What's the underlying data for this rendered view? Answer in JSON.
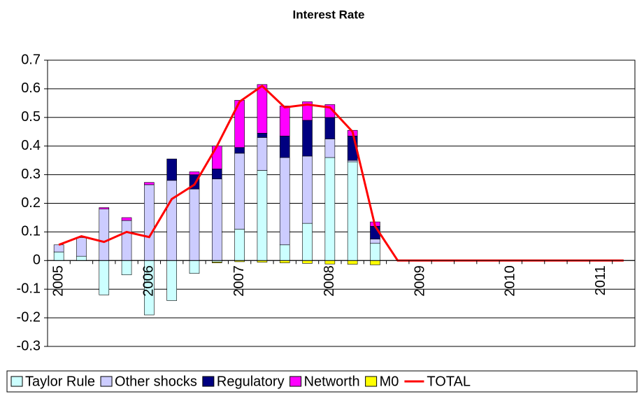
{
  "chart_data": {
    "type": "stacked-bar-line",
    "title": "Interest Rate",
    "categories": [
      "2005",
      null,
      null,
      null,
      "2006",
      null,
      null,
      null,
      "2007",
      null,
      null,
      null,
      "2008",
      null,
      null,
      null,
      "2009",
      null,
      null,
      null,
      "2010",
      null,
      null,
      null,
      "2011",
      null
    ],
    "series": [
      {
        "name": "Taylor Rule",
        "type": "bar",
        "color": "#ccffff",
        "values": [
          0.03,
          0.015,
          -0.12,
          -0.05,
          -0.19,
          -0.14,
          -0.045,
          -0.005,
          0.11,
          0.315,
          0.055,
          0.13,
          0.36,
          0.345,
          0.06,
          0,
          0,
          0,
          0,
          0,
          0,
          0,
          0,
          0,
          0,
          0
        ]
      },
      {
        "name": "Other shocks",
        "type": "bar",
        "color": "#ccccff",
        "values": [
          0.025,
          0.065,
          0.18,
          0.14,
          0.265,
          0.28,
          0.25,
          0.285,
          0.265,
          0.115,
          0.305,
          0.235,
          0.065,
          0.005,
          0.015,
          0,
          0,
          0,
          0,
          0,
          0,
          0,
          0,
          0,
          0,
          0
        ]
      },
      {
        "name": "Regulatory",
        "type": "bar",
        "color": "#000080",
        "values": [
          0,
          0,
          0,
          0,
          0,
          0.075,
          0.05,
          0.035,
          0.02,
          0.015,
          0.075,
          0.125,
          0.075,
          0.085,
          0.045,
          0,
          0,
          0,
          0,
          0,
          0,
          0,
          0,
          0,
          0,
          0
        ]
      },
      {
        "name": "Networth",
        "type": "bar",
        "color": "#ff00ff",
        "values": [
          0,
          0,
          0.005,
          0.01,
          0.008,
          0,
          0.01,
          0.08,
          0.165,
          0.17,
          0.105,
          0.065,
          0.045,
          0.02,
          0.015,
          0,
          0,
          0,
          0,
          0,
          0,
          0,
          0,
          0,
          0,
          0
        ]
      },
      {
        "name": "M0",
        "type": "bar",
        "color": "#ffff00",
        "values": [
          0,
          0,
          0,
          0,
          0,
          0,
          0,
          -0.003,
          -0.004,
          -0.006,
          -0.008,
          -0.01,
          -0.012,
          -0.013,
          -0.015,
          0,
          0,
          0,
          0,
          0,
          0,
          0,
          0,
          0,
          0,
          0
        ]
      },
      {
        "name": "TOTAL",
        "type": "line",
        "color": "#ff0000",
        "values": [
          0.055,
          0.085,
          0.065,
          0.1,
          0.082,
          0.215,
          0.265,
          0.4,
          0.555,
          0.61,
          0.535,
          0.545,
          0.535,
          0.45,
          0.12,
          0,
          0,
          0,
          0,
          0,
          0,
          0,
          0,
          0,
          0,
          0
        ]
      }
    ],
    "ylim": [
      -0.3,
      0.7
    ],
    "yticks": [
      -0.3,
      -0.2,
      -0.1,
      0,
      0.1,
      0.2,
      0.3,
      0.4,
      0.5,
      0.6,
      0.7
    ],
    "grid": true,
    "legend": "bottom"
  }
}
